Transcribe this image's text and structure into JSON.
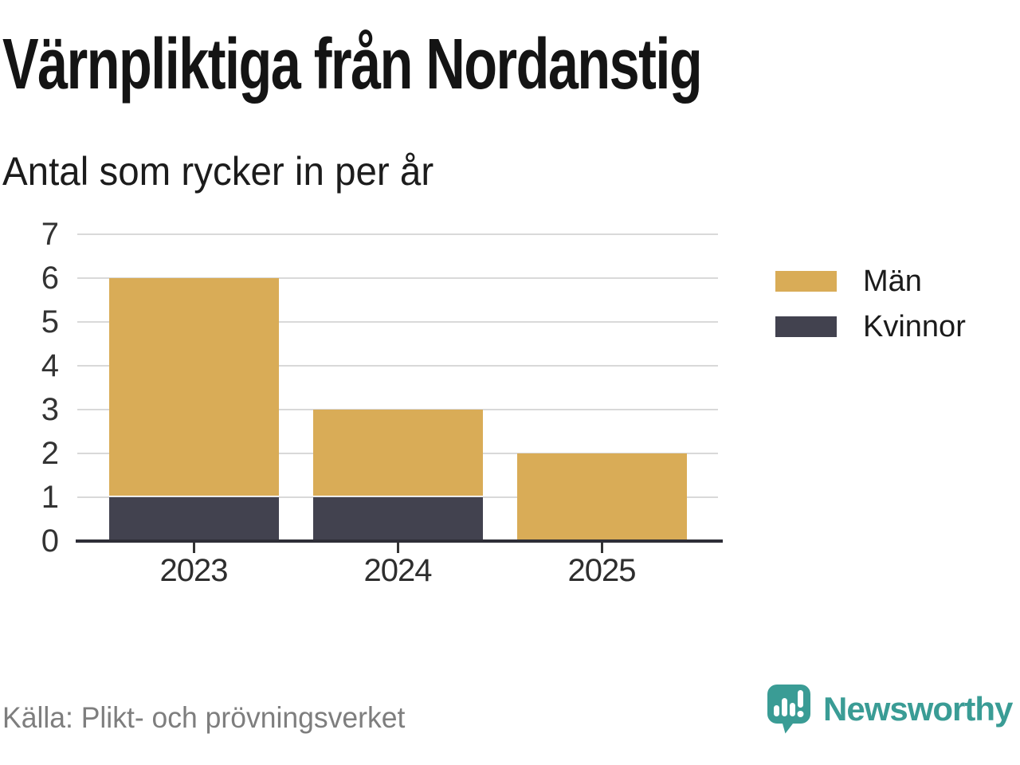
{
  "header": {
    "title": "Värnpliktiga från Nordanstig",
    "subtitle": "Antal som rycker in per år"
  },
  "chart_data": {
    "type": "bar",
    "stacked": true,
    "title": "Värnpliktiga från Nordanstig",
    "subtitle": "Antal som rycker in per år",
    "categories": [
      "2023",
      "2024",
      "2025"
    ],
    "series": [
      {
        "name": "Män",
        "color": "#D9AC57",
        "values": [
          5,
          2,
          2
        ]
      },
      {
        "name": "Kvinnor",
        "color": "#42424F",
        "values": [
          1,
          1,
          0
        ]
      }
    ],
    "stack_totals": [
      6,
      3,
      2
    ],
    "xlabel": "",
    "ylabel": "",
    "ylim": [
      0,
      7
    ],
    "yticks": [
      0,
      1,
      2,
      3,
      4,
      5,
      6,
      7
    ],
    "grid": true,
    "legend_position": "right"
  },
  "footer": {
    "source": "Källa: Plikt- och prövningsverket",
    "brand": "Newsworthy",
    "brand_color": "#3A9C95"
  },
  "colors": {
    "men": "#D9AC57",
    "women": "#42424F",
    "grid": "#D9D9D9",
    "axis_line": "#2E2E37",
    "tick_label": "#333333",
    "title": "#141414",
    "source_text": "#7E7E7E",
    "brand_teal": "#3A9C95"
  }
}
